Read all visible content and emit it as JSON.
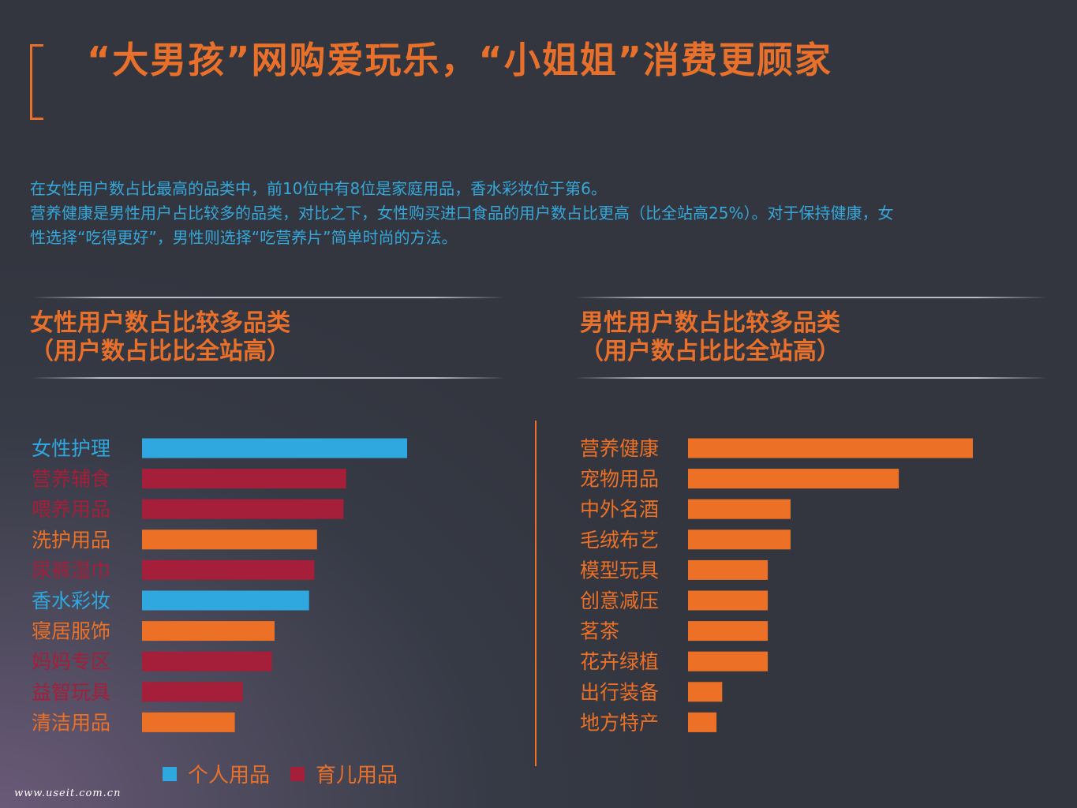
{
  "header": {
    "title": "“大男孩”网购爱玩乐，“小姐姐”消费更顾家"
  },
  "description": {
    "line1": "在女性用户数占比最高的品类中，前10位中有8位是家庭用品，香水彩妆位于第6。",
    "line2": "营养健康是男性用户占比较多的品类，对比之下，女性购买进口食品的用户数占比更高（比全站高25%）。对于保持健康，女",
    "line3": "性选择“吃得更好”，男性则选择“吃营养片”简单时尚的方法。"
  },
  "colors": {
    "personal": "#2fa8e0",
    "baby": "#a51e3a",
    "home": "#ec7026",
    "male": "#ec7026",
    "accent": "#e8702a"
  },
  "chart_data": [
    {
      "type": "bar",
      "orientation": "horizontal",
      "title": "女性用户数占比较多品类",
      "subtitle": "（用户数占比比全站高）",
      "categories": [
        "女性护理",
        "营养辅食",
        "喂养用品",
        "洗护用品",
        "尿裤湿巾",
        "香水彩妆",
        "寝居服饰",
        "妈妈专区",
        "益智玩具",
        "清洁用品"
      ],
      "values": [
        100,
        77,
        76,
        66,
        65,
        63,
        50,
        49,
        38,
        35
      ],
      "groups": [
        "personal",
        "baby",
        "baby",
        "home",
        "baby",
        "personal",
        "home",
        "baby",
        "baby",
        "home"
      ],
      "legend": [
        {
          "name": "个人用品",
          "group": "personal"
        },
        {
          "name": "育儿用品",
          "group": "baby"
        }
      ],
      "legend_position": "bottom",
      "grid": false
    },
    {
      "type": "bar",
      "orientation": "horizontal",
      "title": "男性用户数占比较多品类",
      "subtitle": "（用户数占比比全站高）",
      "categories": [
        "营养健康",
        "宠物用品",
        "中外名酒",
        "毛绒布艺",
        "模型玩具",
        "创意减压",
        "茗茶",
        "花卉绿植",
        "出行装备",
        "地方特产"
      ],
      "values": [
        100,
        74,
        36,
        36,
        28,
        28,
        28,
        28,
        12,
        10
      ],
      "groups": [
        "male",
        "male",
        "male",
        "male",
        "male",
        "male",
        "male",
        "male",
        "male",
        "male"
      ],
      "grid": false
    }
  ],
  "footer": {
    "watermark": "www.useit.com.cn"
  }
}
